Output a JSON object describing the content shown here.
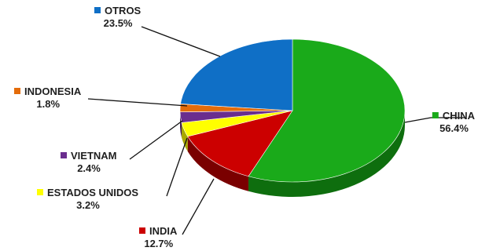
{
  "chart_data": {
    "type": "pie",
    "title": "",
    "series": [
      {
        "name": "",
        "slices": [
          {
            "label": "CHINA",
            "value": 56.4,
            "value_label": "56.4%",
            "color": "#1aaa1a",
            "side": "#0e6e0e"
          },
          {
            "label": "INDIA",
            "value": 12.7,
            "value_label": "12.7%",
            "color": "#cc0000",
            "side": "#7a0000"
          },
          {
            "label": "ESTADOS UNIDOS",
            "value": 3.2,
            "value_label": "3.2%",
            "color": "#ffff00",
            "side": "#a8a800"
          },
          {
            "label": "VIETNAM",
            "value": 2.4,
            "value_label": "2.4%",
            "color": "#6a2d8e",
            "side": "#3d1a52"
          },
          {
            "label": "INDONESIA",
            "value": 1.8,
            "value_label": "1.8%",
            "color": "#e46c0a",
            "side": "#8a4106"
          },
          {
            "label": "OTROS",
            "value": 23.5,
            "value_label": "23.5%",
            "color": "#0f6fc6",
            "side": "#0a4a85"
          }
        ]
      }
    ],
    "legend": "none",
    "style": "3d-tilted"
  }
}
